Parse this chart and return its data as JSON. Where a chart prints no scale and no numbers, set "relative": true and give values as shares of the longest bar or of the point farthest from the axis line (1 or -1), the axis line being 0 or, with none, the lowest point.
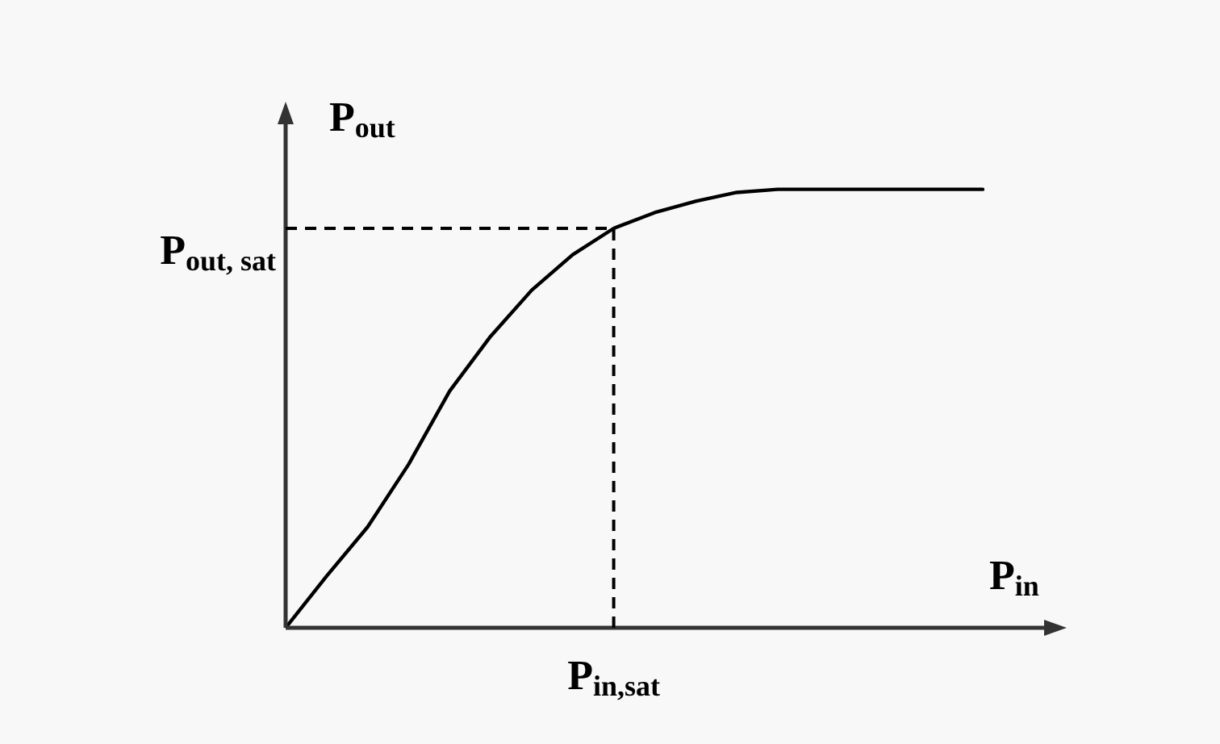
{
  "chart_data": {
    "type": "line",
    "relative": true,
    "xlabel": "P$_{in}$",
    "ylabel": "P$_{out}$",
    "categories": [
      null,
      null,
      null,
      null,
      null,
      null,
      null,
      null,
      null,
      null,
      null,
      null,
      null,
      null,
      null,
      null,
      null,
      null
    ],
    "series": [
      {
        "color": "#000000",
        "values": [
          0,
          0.118,
          0.23,
          0.373,
          0.54,
          0.665,
          0.77,
          0.851,
          0.911,
          0.947,
          0.973,
          0.993,
          1,
          1,
          1,
          1,
          1,
          1
        ]
      }
    ],
    "ref_lines": [
      {
        "axis": "y",
        "value": 0.911,
        "label": "P$_{out, sat}$",
        "line_style": "dashed",
        "color": "#000000"
      },
      {
        "axis": "x",
        "label": "P$_{in,sat}$",
        "line_style": "dashed",
        "color": "#000000"
      }
    ],
    "marker": "none",
    "line_style": "solid",
    "grid": false,
    "legend": false
  }
}
